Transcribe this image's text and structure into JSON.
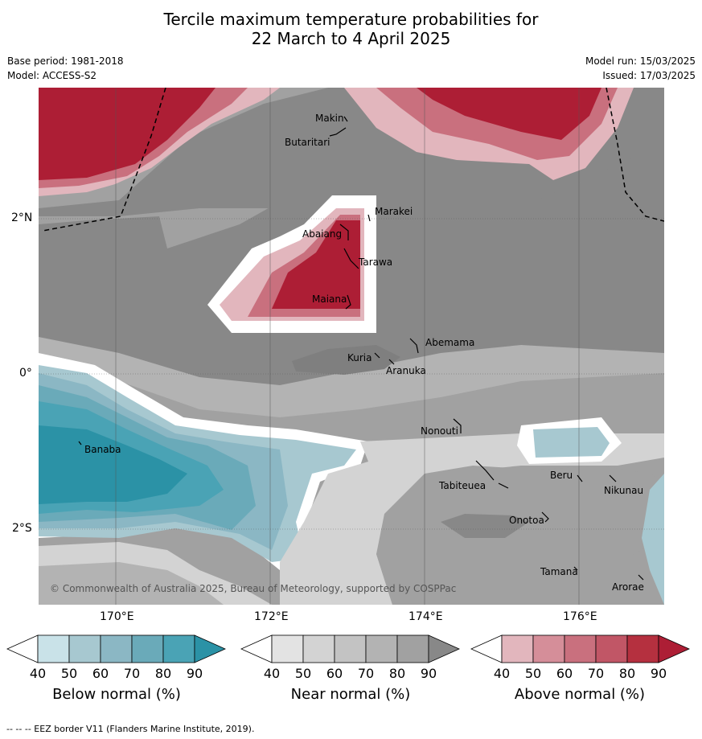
{
  "title_line1": "Tercile maximum temperature probabilities for",
  "title_line2": "22 March to 4 April 2025",
  "base_period": "Base period: 1981-2018",
  "model": "Model: ACCESS-S2",
  "model_run": "Model run: 15/03/2025",
  "issued": "Issued: 17/03/2025",
  "lat_labels": [
    "2°N",
    "0°",
    "2°S"
  ],
  "lon_labels": [
    "170°E",
    "172°E",
    "174°E",
    "176°E"
  ],
  "places": [
    "Makin",
    "Butaritari",
    "Marakei",
    "Abaiang",
    "Tarawa",
    "Maiana",
    "Abemama",
    "Kuria",
    "Aranuka",
    "Nonouti",
    "Banaba",
    "Tabiteuea",
    "Beru",
    "Nikunau",
    "Onotoa",
    "Tamana",
    "Arorae"
  ],
  "copyright": "© Commonwealth of Australia 2025, Bureau of Meteorology, supported by COSPPac",
  "colorbars": [
    {
      "label": "Below normal (%)",
      "ticks": [
        "40",
        "50",
        "60",
        "70",
        "80",
        "90"
      ],
      "colors": [
        "#ffffff",
        "#c9e2e8",
        "#a7c8d0",
        "#8bb7c4",
        "#6aaab9",
        "#4aa3b5",
        "#2b92a6"
      ]
    },
    {
      "label": "Near normal (%)",
      "ticks": [
        "40",
        "50",
        "60",
        "70",
        "80",
        "90"
      ],
      "colors": [
        "#ffffff",
        "#e3e3e3",
        "#d3d3d3",
        "#c3c3c3",
        "#b3b3b3",
        "#a1a1a1",
        "#888888"
      ]
    },
    {
      "label": "Above normal (%)",
      "ticks": [
        "40",
        "50",
        "60",
        "70",
        "80",
        "90"
      ],
      "colors": [
        "#ffffff",
        "#e2b6bd",
        "#d58e99",
        "#c9707e",
        "#c15666",
        "#b5303f",
        "#ad1e35"
      ]
    }
  ],
  "footer": "--  --  -- EEZ border V11 (Flanders Marine Institute, 2019)."
}
